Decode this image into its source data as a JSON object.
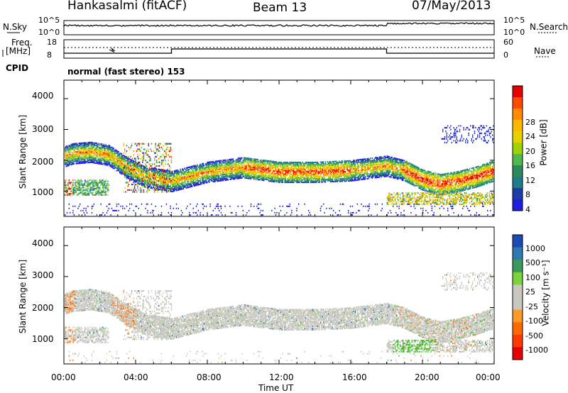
{
  "header": {
    "radar": "Hankasalmi (fitACF)",
    "beam": "Beam 13",
    "date": "07/May/2013"
  },
  "noise_panel": {
    "left_label": "N.Sky",
    "right_label": "N.Search",
    "left_ticks": [
      "10^5",
      "10^0"
    ],
    "right_ticks": [
      "10^5",
      "10^0"
    ]
  },
  "freq_panel": {
    "left_label_1": "Freq.",
    "left_label_2": "[MHz]",
    "left_ticks": [
      "18",
      "8"
    ],
    "right_ticks": [
      "60",
      "0"
    ],
    "right_label": "Nave"
  },
  "cpid_panel": {
    "label": "CPID",
    "value": "normal (fast stereo) 153"
  },
  "chart_data": [
    {
      "type": "heatmap",
      "name": "power",
      "ylabel": "Slant Range [km]",
      "xlabel": "",
      "xlim": [
        0,
        24
      ],
      "ylim": [
        180,
        4600
      ],
      "yticks": [
        "1000",
        "2000",
        "3000",
        "4000"
      ],
      "colorbar_label": "Power [dB]",
      "colorbar_ticks": [
        "28",
        "24",
        "20",
        "16",
        "12",
        "8",
        "4"
      ],
      "colorbar_colors": [
        "#e60000",
        "#ff4a00",
        "#ff8c00",
        "#ffb800",
        "#e6d200",
        "#9fd400",
        "#4fb84f",
        "#2e8a5e",
        "#1e7c8c",
        "#1e3ca8",
        "#1e1ee0"
      ],
      "bands": [
        {
          "x": [
            0,
            0.5,
            1.5,
            2.5,
            3.5,
            4.5,
            6,
            8,
            10,
            12,
            14,
            16,
            18,
            19,
            20,
            21,
            22,
            23,
            24
          ],
          "y": [
            2150,
            2250,
            2300,
            2200,
            1800,
            1500,
            1350,
            1650,
            1800,
            1650,
            1650,
            1700,
            1850,
            1700,
            1400,
            1250,
            1350,
            1500,
            1700
          ],
          "thick": 340
        }
      ]
    },
    {
      "type": "heatmap",
      "name": "velocity",
      "ylabel": "Slant Range [km]",
      "xlabel": "Time UT",
      "xlim": [
        0,
        24
      ],
      "ylim": [
        180,
        4600
      ],
      "xticks": [
        "00:00",
        "04:00",
        "08:00",
        "12:00",
        "16:00",
        "20:00",
        "00:00"
      ],
      "yticks": [
        "1000",
        "2000",
        "3000",
        "4000"
      ],
      "colorbar_label": "Velocity [m s⁻¹]",
      "colorbar_ticks": [
        "1000",
        "500",
        "100",
        "25",
        "-25",
        "-100",
        "-500",
        "-1000"
      ],
      "colorbar_colors": [
        "#1e4ab4",
        "#2e7ab0",
        "#3c9a5a",
        "#7ad23c",
        "#c8c8c0",
        "#c8c8c0",
        "#ff9a28",
        "#ff6a00",
        "#ff3a00",
        "#e60000"
      ]
    }
  ]
}
